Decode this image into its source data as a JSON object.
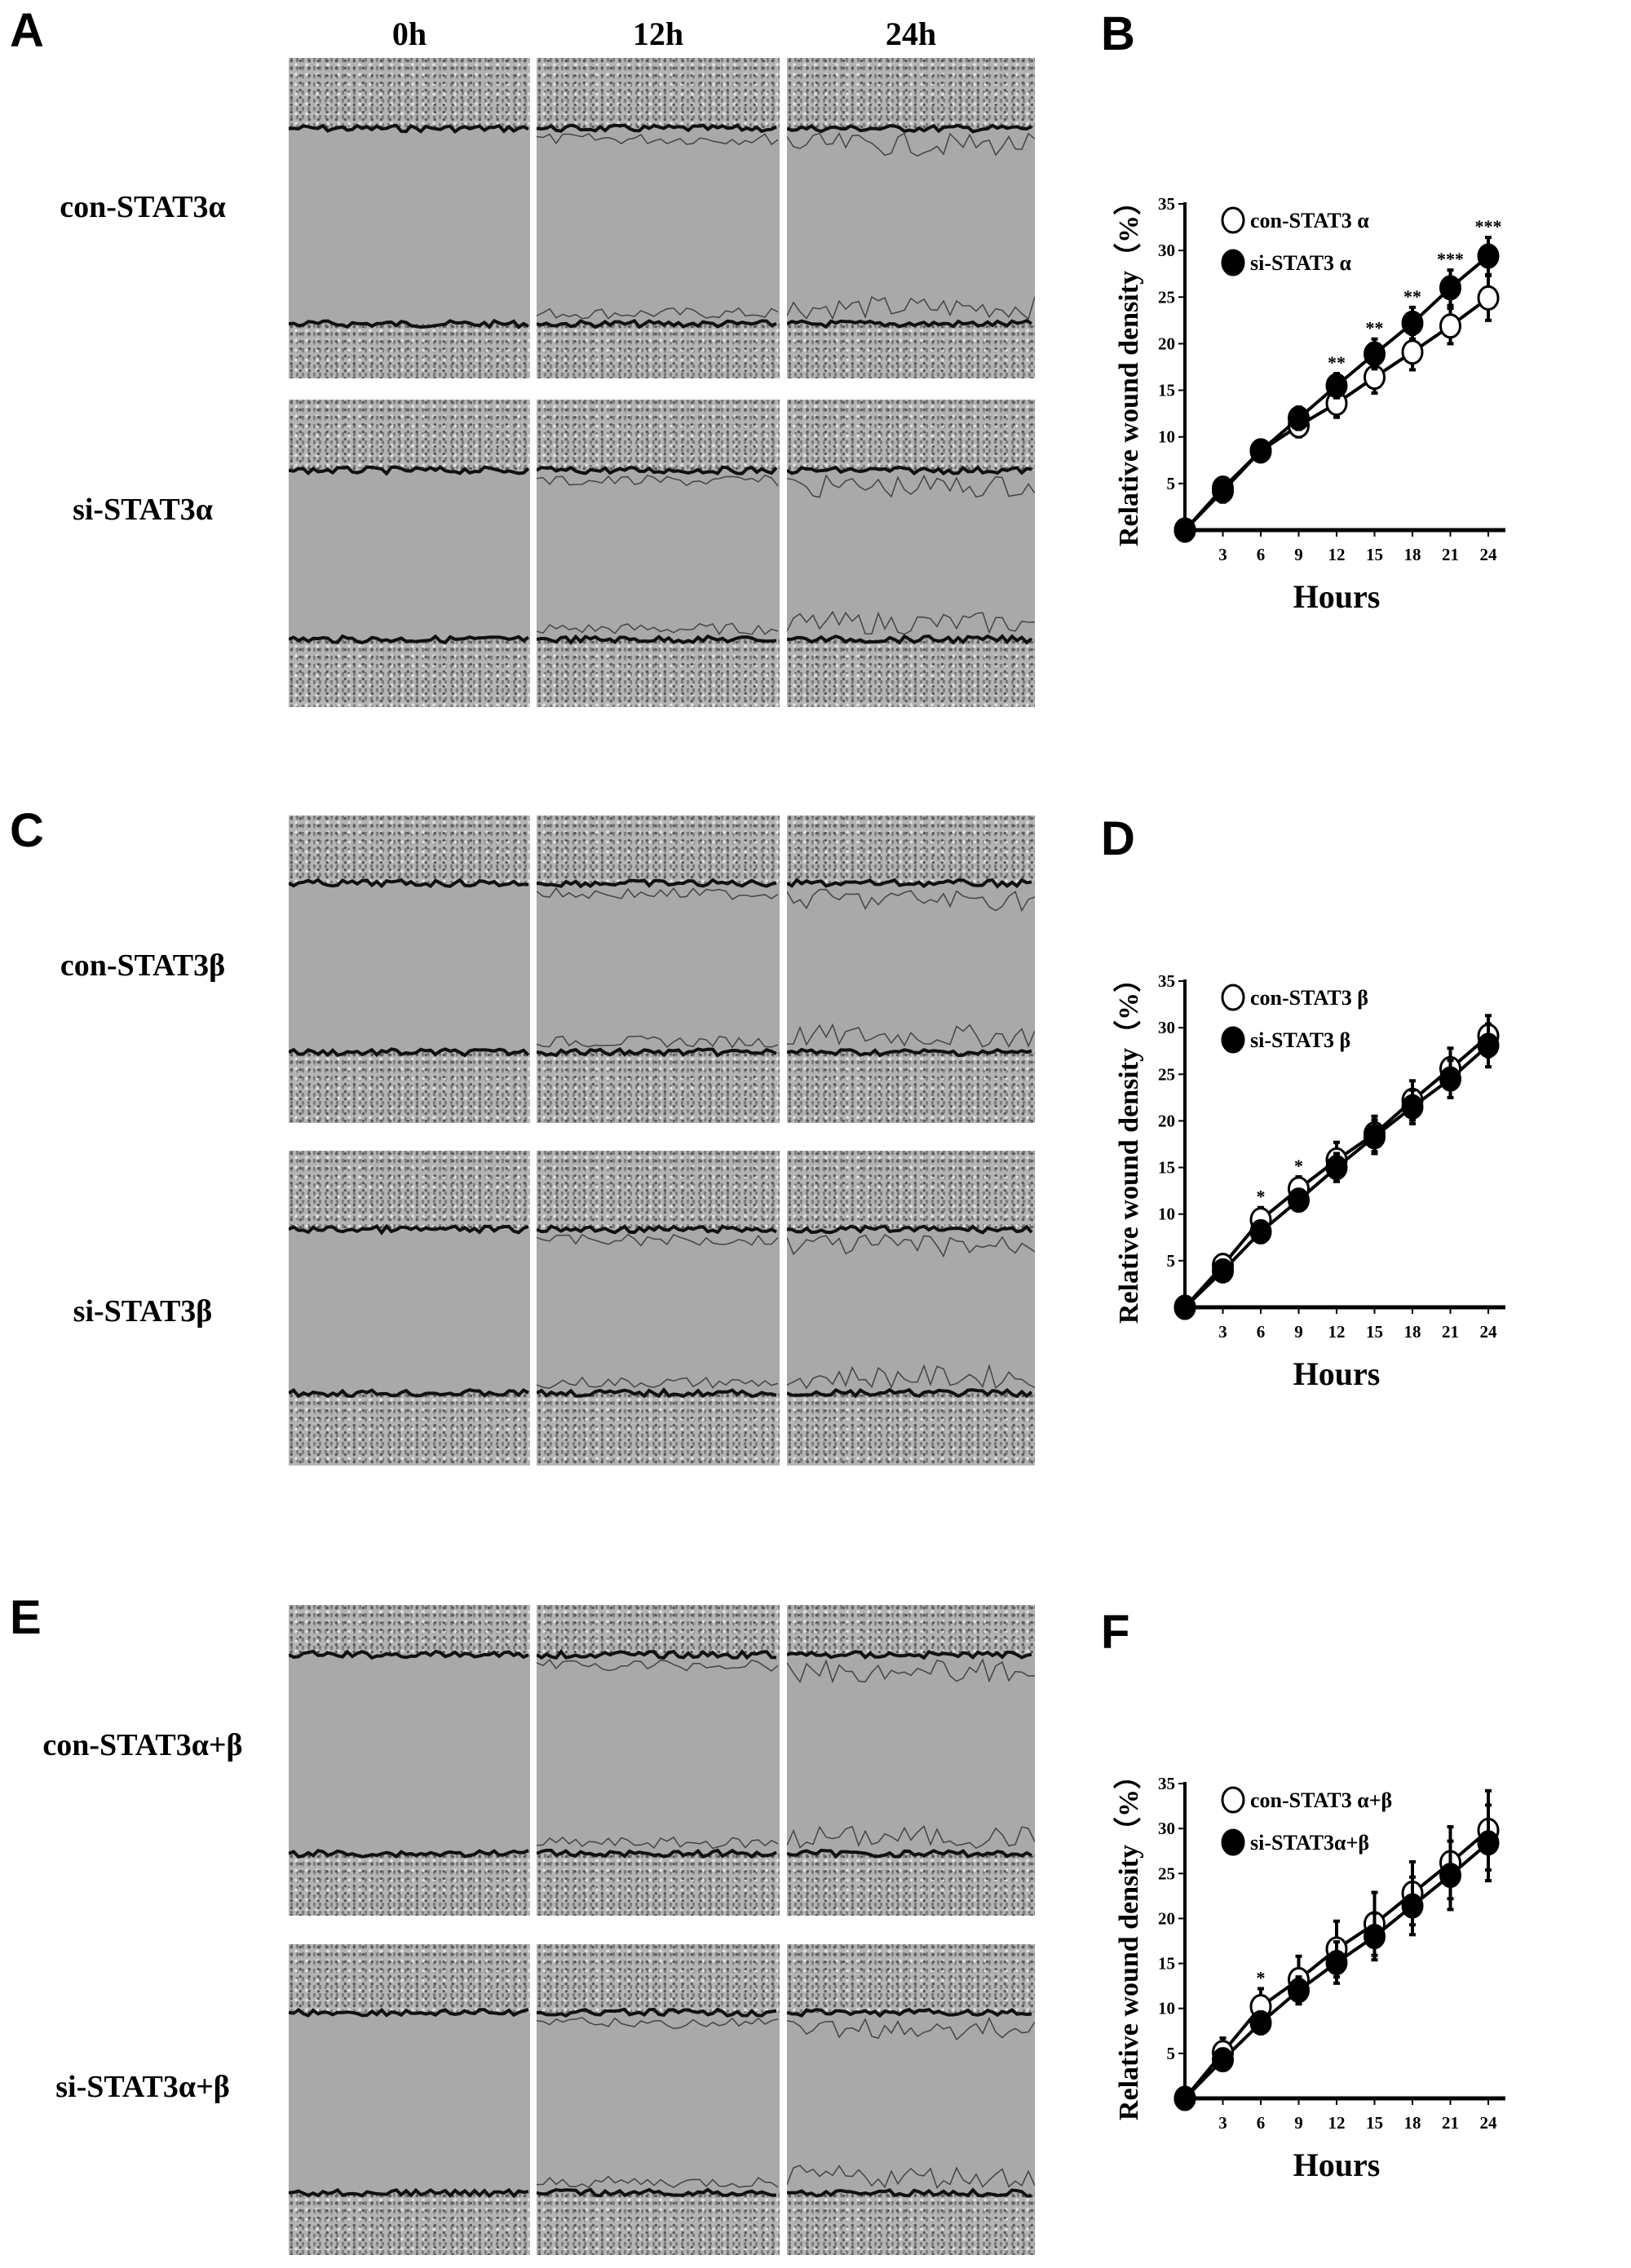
{
  "panel_letters": {
    "a": "A",
    "b": "B",
    "c": "C",
    "d": "D",
    "e": "E",
    "f": "F"
  },
  "time_headers": [
    "0h",
    "12h",
    "24h"
  ],
  "row_labels": {
    "a_con": "con-STAT3α",
    "a_si": "si-STAT3α",
    "c_con": "con-STAT3β",
    "c_si": "si-STAT3β",
    "e_con": "con-STAT3α+β",
    "e_si": "si-STAT3α+β"
  },
  "chart_data": [
    {
      "panel": "B",
      "type": "line",
      "xlabel": "Hours",
      "ylabel": "Relative wound density（%）",
      "x": [
        0,
        3,
        6,
        9,
        12,
        15,
        18,
        21,
        24
      ],
      "xticks": [
        3,
        6,
        9,
        12,
        15,
        18,
        21,
        24
      ],
      "yticks": [
        5,
        10,
        15,
        20,
        25,
        30,
        35
      ],
      "ylim": [
        0,
        35
      ],
      "legend": "top-left",
      "series": [
        {
          "name": "con-STAT3 α",
          "marker": "open-circle",
          "values": [
            0,
            4.5,
            8.5,
            11.2,
            13.6,
            16.4,
            19.1,
            21.9,
            24.9
          ],
          "errors": [
            0,
            1,
            1,
            1.2,
            1.5,
            1.7,
            1.9,
            1.9,
            2.4
          ]
        },
        {
          "name": "si-STAT3 α",
          "marker": "filled-circle",
          "values": [
            0,
            4.2,
            8.5,
            12,
            15.5,
            18.9,
            22.2,
            26,
            29.4
          ],
          "errors": [
            0,
            1.2,
            1,
            1.2,
            1.3,
            1.6,
            1.7,
            1.9,
            2
          ]
        }
      ],
      "significance": [
        {
          "x": 12,
          "label": "**"
        },
        {
          "x": 15,
          "label": "**"
        },
        {
          "x": 18,
          "label": "**"
        },
        {
          "x": 21,
          "label": "***"
        },
        {
          "x": 24,
          "label": "***"
        }
      ]
    },
    {
      "panel": "D",
      "type": "line",
      "xlabel": "Hours",
      "ylabel": "Relative wound density（%）",
      "x": [
        0,
        3,
        6,
        9,
        12,
        15,
        18,
        21,
        24
      ],
      "xticks": [
        3,
        6,
        9,
        12,
        15,
        18,
        21,
        24
      ],
      "yticks": [
        5,
        10,
        15,
        20,
        25,
        30,
        35
      ],
      "ylim": [
        0,
        35
      ],
      "legend": "top-left",
      "series": [
        {
          "name": "con-STAT3 β",
          "marker": "open-circle",
          "values": [
            0,
            4.5,
            9.4,
            12.7,
            15.8,
            18.6,
            22.2,
            25.6,
            29.1
          ],
          "errors": [
            0,
            0.8,
            1.3,
            1.3,
            1.9,
            1.9,
            2.1,
            2.2,
            2.2
          ]
        },
        {
          "name": "si-STAT3 β",
          "marker": "filled-circle",
          "values": [
            0,
            3.9,
            8.1,
            11.5,
            15,
            18.3,
            21.5,
            24.5,
            28.1
          ],
          "errors": [
            0,
            0.6,
            0.8,
            1,
            1.5,
            1.8,
            1.8,
            2,
            2.3
          ]
        }
      ],
      "significance": [
        {
          "x": 6,
          "label": "*"
        },
        {
          "x": 9,
          "label": "*"
        }
      ]
    },
    {
      "panel": "F",
      "type": "line",
      "xlabel": "Hours",
      "ylabel": "Relative wound density（%）",
      "x": [
        0,
        3,
        6,
        9,
        12,
        15,
        18,
        21,
        24
      ],
      "xticks": [
        3,
        6,
        9,
        12,
        15,
        18,
        21,
        24
      ],
      "yticks": [
        5,
        10,
        15,
        20,
        25,
        30,
        35
      ],
      "ylim": [
        0,
        35
      ],
      "legend": "top-left",
      "series": [
        {
          "name": "con-STAT3 α+β",
          "marker": "open-circle",
          "values": [
            0,
            5.1,
            10.2,
            13.2,
            16.6,
            19.4,
            22.8,
            26.2,
            29.8
          ],
          "errors": [
            0,
            1.6,
            2,
            2.6,
            3.1,
            3.5,
            3.5,
            4,
            4.4
          ]
        },
        {
          "name": "si-STAT3α+β",
          "marker": "filled-circle",
          "values": [
            0,
            4.3,
            8.4,
            12,
            15.1,
            18,
            21.4,
            24.8,
            28.4
          ],
          "errors": [
            0,
            0.8,
            1.2,
            1.5,
            2.3,
            2.6,
            3.2,
            3.8,
            4.2
          ]
        }
      ],
      "significance": [
        {
          "x": 6,
          "label": "*"
        }
      ]
    }
  ]
}
